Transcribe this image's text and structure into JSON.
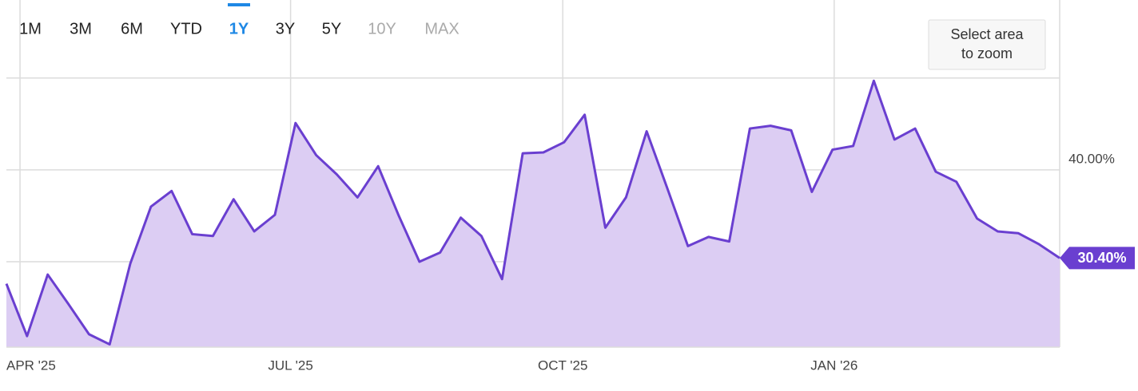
{
  "chart_data": {
    "type": "area",
    "range_buttons": [
      {
        "label": "1M",
        "state": "enabled"
      },
      {
        "label": "3M",
        "state": "enabled"
      },
      {
        "label": "6M",
        "state": "enabled"
      },
      {
        "label": "YTD",
        "state": "enabled"
      },
      {
        "label": "1Y",
        "state": "active"
      },
      {
        "label": "3Y",
        "state": "enabled"
      },
      {
        "label": "5Y",
        "state": "enabled"
      },
      {
        "label": "10Y",
        "state": "disabled"
      },
      {
        "label": "MAX",
        "state": "disabled"
      }
    ],
    "zoom_button": [
      "Select area",
      "to zoom"
    ],
    "x": [
      0,
      1,
      2,
      3,
      4,
      5,
      6,
      7,
      8,
      9,
      10,
      11,
      12,
      13,
      14,
      15,
      16,
      17,
      18,
      19,
      20,
      21,
      22,
      23,
      24,
      25,
      26,
      27,
      28,
      29,
      30,
      31,
      32,
      33,
      34,
      35,
      36,
      37,
      38,
      39,
      40,
      41,
      42,
      43,
      44,
      45,
      46,
      47,
      48,
      49,
      50,
      51
    ],
    "series": [
      {
        "color": "#6a3fd0",
        "fill": "#dccdf3",
        "values": [
          27.6,
          21.9,
          28.6,
          25.4,
          22.1,
          21.0,
          29.8,
          36.0,
          37.7,
          33.0,
          32.8,
          36.8,
          33.3,
          35.1,
          45.1,
          41.6,
          39.5,
          37.0,
          40.4,
          35.0,
          30.0,
          31.0,
          34.8,
          32.8,
          28.1,
          41.8,
          41.9,
          43.0,
          46.0,
          33.7,
          37.0,
          44.2,
          38.0,
          31.7,
          32.7,
          32.2,
          44.5,
          44.8,
          44.3,
          37.6,
          42.2,
          42.6,
          49.7,
          43.3,
          44.5,
          39.8,
          38.7,
          34.7,
          33.3,
          33.1,
          31.9,
          30.4
        ],
        "last_value_label": "30.40%"
      }
    ],
    "xlim": [
      0,
      51
    ],
    "xticks": [
      {
        "value": 0.66,
        "label": "APR '25"
      },
      {
        "value": 13.76,
        "label": "JUL '25"
      },
      {
        "value": 26.94,
        "label": "OCT '25"
      },
      {
        "value": 40.08,
        "label": "JAN '26"
      }
    ],
    "ylim": [
      20.7,
      57.8
    ],
    "yticks": [
      {
        "value": 40,
        "label": "40.00%"
      }
    ],
    "gridlines": [
      30,
      40,
      50
    ],
    "grid": true
  }
}
